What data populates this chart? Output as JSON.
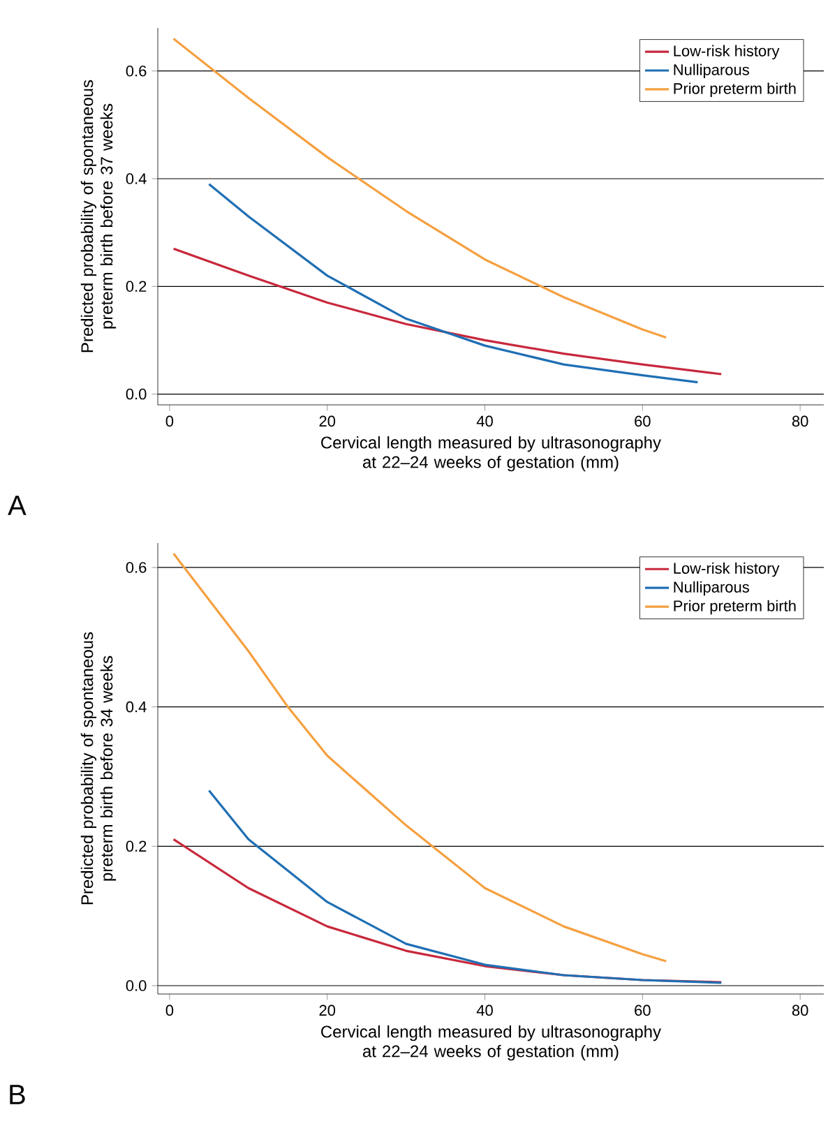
{
  "chart_data": [
    {
      "type": "line",
      "xlabel": "Cervical length measured by ultrasonography at 22–24 weeks of gestation (mm)",
      "ylabel": "Predicted probability of spontaneous preterm birth before 37 weeks",
      "annotations": [
        "A"
      ],
      "xlim": [
        -1.5,
        83
      ],
      "ylim": [
        -0.02,
        0.68
      ],
      "xticks": [
        0,
        20,
        40,
        60,
        80
      ],
      "yticks": [
        {
          "value": 0,
          "label": "0.0"
        },
        {
          "value": 0.2,
          "label": "0.2"
        },
        {
          "value": 0.4,
          "label": "0.4"
        },
        {
          "value": 0.6,
          "label": "0.6"
        }
      ],
      "grid": "y",
      "legend": "top right",
      "line_style": "solid",
      "series": [
        {
          "name": "Low-risk history",
          "color": "#c8283c",
          "x": [
            0.5,
            10,
            20,
            30,
            40,
            50,
            60,
            70
          ],
          "values": [
            0.27,
            0.22,
            0.17,
            0.13,
            0.1,
            0.075,
            0.055,
            0.037
          ]
        },
        {
          "name": "Nulliparous",
          "color": "#1f6fb4",
          "x": [
            5,
            10,
            20,
            30,
            40,
            50,
            60,
            67
          ],
          "values": [
            0.39,
            0.33,
            0.22,
            0.14,
            0.09,
            0.055,
            0.035,
            0.022
          ]
        },
        {
          "name": "Prior preterm birth",
          "color": "#f5a040",
          "x": [
            0.5,
            10,
            20,
            30,
            40,
            50,
            60,
            63
          ],
          "values": [
            0.66,
            0.55,
            0.44,
            0.34,
            0.25,
            0.18,
            0.12,
            0.105
          ]
        }
      ]
    },
    {
      "type": "line",
      "xlabel": "Cervical length measured by ultrasonography at 22–24 weeks of gestation (mm)",
      "ylabel": "Predicted probability of spontaneous preterm birth before 34 weeks",
      "annotations": [
        "B"
      ],
      "xlim": [
        -1.5,
        83
      ],
      "ylim": [
        -0.012,
        0.635
      ],
      "xticks": [
        0,
        20,
        40,
        60,
        80
      ],
      "yticks": [
        {
          "value": 0,
          "label": "0.0"
        },
        {
          "value": 0.2,
          "label": "0.2"
        },
        {
          "value": 0.4,
          "label": "0.4"
        },
        {
          "value": 0.6,
          "label": "0.6"
        }
      ],
      "grid": "y",
      "legend": "top right",
      "line_style": "solid",
      "series": [
        {
          "name": "Low-risk history",
          "color": "#c8283c",
          "x": [
            0.5,
            10,
            20,
            30,
            40,
            50,
            60,
            70
          ],
          "values": [
            0.21,
            0.14,
            0.085,
            0.05,
            0.028,
            0.015,
            0.008,
            0.005
          ]
        },
        {
          "name": "Nulliparous",
          "color": "#1f6fb4",
          "x": [
            5,
            10,
            20,
            30,
            40,
            50,
            60,
            70
          ],
          "values": [
            0.28,
            0.21,
            0.12,
            0.06,
            0.03,
            0.015,
            0.008,
            0.004
          ]
        },
        {
          "name": "Prior preterm birth",
          "color": "#f5a040",
          "x": [
            0.5,
            10,
            15,
            20,
            30,
            40,
            50,
            60,
            63
          ],
          "values": [
            0.62,
            0.48,
            0.4,
            0.33,
            0.23,
            0.14,
            0.085,
            0.045,
            0.035
          ]
        }
      ]
    }
  ]
}
